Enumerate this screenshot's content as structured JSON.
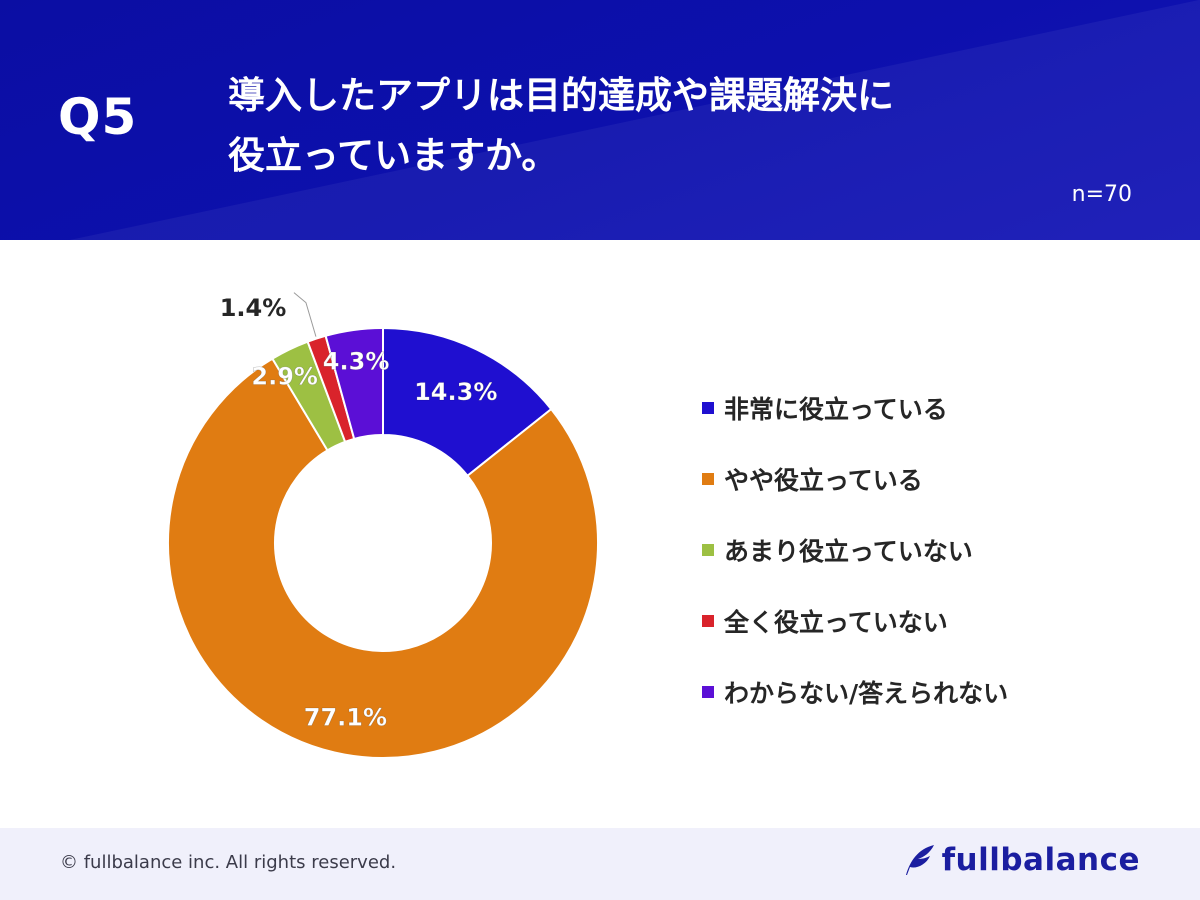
{
  "header": {
    "question_number": "Q5",
    "title_lines": [
      "導入したアプリは目的達成や課題解決に",
      "役立っていますか。"
    ],
    "sample_size": "n=70"
  },
  "chart_data": {
    "type": "pie",
    "donut": true,
    "title": "導入したアプリは目的達成や課題解決に役立っていますか。",
    "categories": [
      "非常に役立っている",
      "やや役立っている",
      "あまり役立っていない",
      "全く役立っていない",
      "わからない/答えられない"
    ],
    "values": [
      14.3,
      77.1,
      2.9,
      1.4,
      4.3
    ],
    "labels": [
      "14.3%",
      "77.1%",
      "2.9%",
      "1.4%",
      "4.3%"
    ],
    "colors": [
      "#1f0fd0",
      "#e07c12",
      "#9dc043",
      "#d9232b",
      "#5b0fd6"
    ],
    "legend_position": "right"
  },
  "footer": {
    "copyright": "© fullbalance inc. All rights reserved.",
    "brand": "fullbalance",
    "brand_color": "#1b1ea0",
    "logo_icon": "feather-icon"
  }
}
